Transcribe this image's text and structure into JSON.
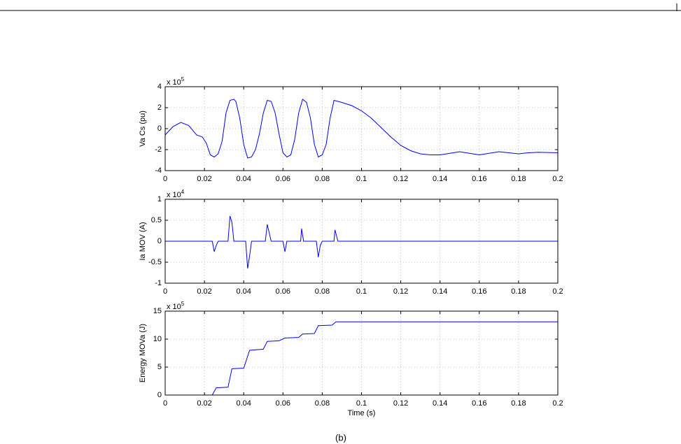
{
  "caption": "(b)",
  "chart_data": [
    {
      "type": "line",
      "ylabel": "Va Cs (pu)",
      "multiplier": {
        "base": "x 10",
        "exponent": "5"
      },
      "color": "#0000ff",
      "grid": true,
      "xlim": [
        0,
        0.2
      ],
      "xticks": [
        0,
        0.02,
        0.04,
        0.06,
        0.08,
        0.1,
        0.12,
        0.14,
        0.16,
        0.18,
        0.2
      ],
      "ylim": [
        -4,
        4
      ],
      "yticks": [
        -4,
        -2,
        0,
        2,
        4
      ],
      "x": [
        0,
        0.004,
        0.008,
        0.012,
        0.016,
        0.019,
        0.021,
        0.023,
        0.025,
        0.027,
        0.029,
        0.031,
        0.033,
        0.035,
        0.036,
        0.038,
        0.04,
        0.042,
        0.044,
        0.046,
        0.048,
        0.05,
        0.052,
        0.054,
        0.056,
        0.058,
        0.06,
        0.062,
        0.064,
        0.066,
        0.068,
        0.07,
        0.072,
        0.074,
        0.076,
        0.078,
        0.08,
        0.082,
        0.084,
        0.086,
        0.09,
        0.095,
        0.1,
        0.105,
        0.11,
        0.115,
        0.12,
        0.125,
        0.13,
        0.135,
        0.14,
        0.145,
        0.15,
        0.155,
        0.16,
        0.165,
        0.17,
        0.175,
        0.18,
        0.185,
        0.19,
        0.2
      ],
      "values": [
        -0.6,
        0.2,
        0.6,
        0.3,
        -0.6,
        -0.8,
        -1.4,
        -2.5,
        -2.7,
        -2.4,
        -1.2,
        1.5,
        2.7,
        2.8,
        2.6,
        1,
        -1.5,
        -2.8,
        -2.7,
        -2,
        -0.5,
        1.5,
        2.7,
        2.6,
        1.5,
        -0.5,
        -2.3,
        -2.7,
        -2.5,
        -1,
        1.5,
        2.8,
        2.5,
        1,
        -1.5,
        -2.7,
        -2.5,
        -1.5,
        1,
        2.7,
        2.5,
        2.2,
        1.7,
        1,
        0.1,
        -0.8,
        -1.6,
        -2.1,
        -2.4,
        -2.5,
        -2.5,
        -2.35,
        -2.2,
        -2.35,
        -2.5,
        -2.35,
        -2.2,
        -2.3,
        -2.4,
        -2.3,
        -2.25,
        -2.3
      ]
    },
    {
      "type": "line",
      "ylabel": "Ia MOV (A)",
      "multiplier": {
        "base": "x 10",
        "exponent": "4"
      },
      "color": "#0000ff",
      "grid": true,
      "xlim": [
        0,
        0.2
      ],
      "xticks": [
        0,
        0.02,
        0.04,
        0.06,
        0.08,
        0.1,
        0.12,
        0.14,
        0.16,
        0.18,
        0.2
      ],
      "ylim": [
        -1,
        1
      ],
      "yticks": [
        -1,
        -0.5,
        0,
        0.5,
        1
      ],
      "x": [
        0,
        0.024,
        0.025,
        0.026,
        0.027,
        0.032,
        0.033,
        0.034,
        0.035,
        0.041,
        0.042,
        0.043,
        0.044,
        0.051,
        0.052,
        0.053,
        0.054,
        0.06,
        0.061,
        0.062,
        0.069,
        0.0695,
        0.0705,
        0.077,
        0.078,
        0.079,
        0.08,
        0.086,
        0.0865,
        0.088,
        0.2
      ],
      "values": [
        0,
        0,
        -0.25,
        -0.1,
        0,
        0,
        0.6,
        0.45,
        0,
        0,
        -0.65,
        -0.35,
        0,
        0,
        0.4,
        0.2,
        0,
        0,
        -0.25,
        0,
        0,
        0.3,
        0,
        0,
        -0.38,
        -0.1,
        0,
        0,
        0.27,
        0,
        0
      ]
    },
    {
      "type": "line",
      "ylabel": "Energy MOVa (J)",
      "xlabel": "Time (s)",
      "multiplier": {
        "base": "x 10",
        "exponent": "5"
      },
      "color": "#0000ff",
      "grid": true,
      "xlim": [
        0,
        0.2
      ],
      "xticks": [
        0,
        0.02,
        0.04,
        0.06,
        0.08,
        0.1,
        0.12,
        0.14,
        0.16,
        0.18,
        0.2
      ],
      "ylim": [
        0,
        15
      ],
      "yticks": [
        0,
        5,
        10,
        15
      ],
      "x": [
        0,
        0.024,
        0.026,
        0.032,
        0.034,
        0.04,
        0.043,
        0.05,
        0.052,
        0.058,
        0.061,
        0.068,
        0.07,
        0.076,
        0.078,
        0.085,
        0.087,
        0.2
      ],
      "values": [
        0,
        0,
        1.3,
        1.4,
        4.7,
        4.8,
        8,
        8.2,
        9.6,
        9.7,
        10.2,
        10.3,
        10.9,
        11,
        12.4,
        12.5,
        13.1,
        13.1
      ]
    }
  ]
}
